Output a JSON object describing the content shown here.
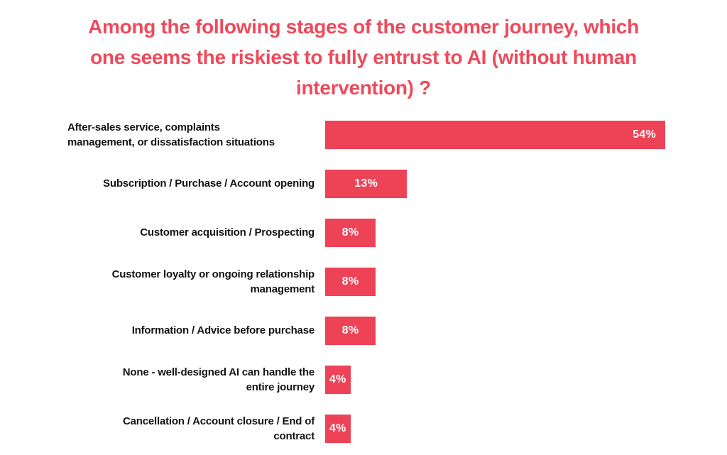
{
  "title": {
    "lines": [
      "Among the following stages of the customer journey, which",
      "one seems the riskiest to fully entrust to AI (without human",
      "intervention) ?"
    ],
    "color": "#ee4a5b"
  },
  "chart_data": {
    "type": "bar",
    "orientation": "horizontal",
    "title": "Among the following stages of the customer journey, which one seems the riskiest to fully entrust to AI (without human intervention) ?",
    "categories": [
      "After-sales service, complaints management, or dissatisfaction situations",
      "Subscription / Purchase / Account opening",
      "Customer acquisition / Prospecting",
      "Customer loyalty or ongoing relationship management",
      "Information / Advice before purchase",
      "None - well-designed AI can handle the entire journey",
      "Cancellation / Account closure / End of contract"
    ],
    "category_lines": [
      [
        "After-sales service, complaints",
        "management, or dissatisfaction situations"
      ],
      [
        "Subscription / Purchase / Account opening"
      ],
      [
        "Customer acquisition / Prospecting"
      ],
      [
        "Customer loyalty or ongoing relationship",
        "management"
      ],
      [
        "Information / Advice before purchase"
      ],
      [
        "None - well-designed AI can handle the",
        "entire journey"
      ],
      [
        "Cancellation / Account closure / End of",
        "contract"
      ]
    ],
    "values": [
      54,
      13,
      8,
      8,
      8,
      4,
      4
    ],
    "value_labels": [
      "54%",
      "13%",
      "8%",
      "8%",
      "8%",
      "4%",
      "4%"
    ],
    "unit": "%",
    "xlim": [
      0,
      54
    ],
    "grid": false,
    "legend": false,
    "bar_color": "#ee4256",
    "value_label_color": "#ffffff",
    "category_label_color": "#141414"
  }
}
